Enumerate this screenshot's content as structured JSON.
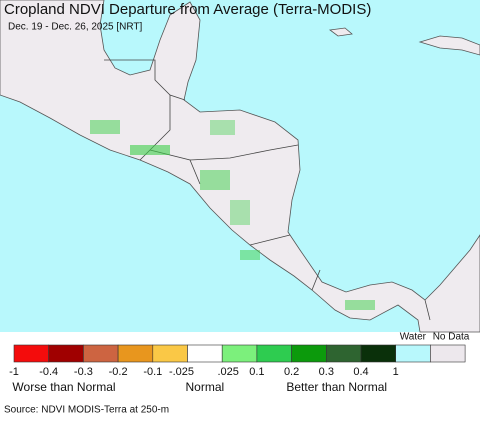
{
  "header": {
    "title": "Cropland NDVI Departure from Average (Terra-MODIS)",
    "subtitle": "Dec. 19 - Dec. 26, 2025 [NRT]"
  },
  "legend": {
    "colors": [
      "#f40c0c",
      "#a00000",
      "#cd6441",
      "#e8961e",
      "#fac846",
      "#ffffff",
      "#7cf07c",
      "#2ecc50",
      "#0c9a0c",
      "#2e6430",
      "#0a300a"
    ],
    "tick_labels": [
      "-1",
      "-0.4",
      "-0.3",
      "-0.2",
      "-0.1",
      "-.025",
      ".025",
      "0.1",
      "0.2",
      "0.3",
      "0.4",
      "1"
    ],
    "extra": [
      {
        "label": "Water",
        "color": "#b8f8fc"
      },
      {
        "label": "No Data",
        "color": "#ede8ed"
      }
    ],
    "groups": [
      "Worse than Normal",
      "Normal",
      "Better than Normal"
    ]
  },
  "footer": {
    "source": "Source: NDVI MODIS-Terra at 250-m"
  }
}
